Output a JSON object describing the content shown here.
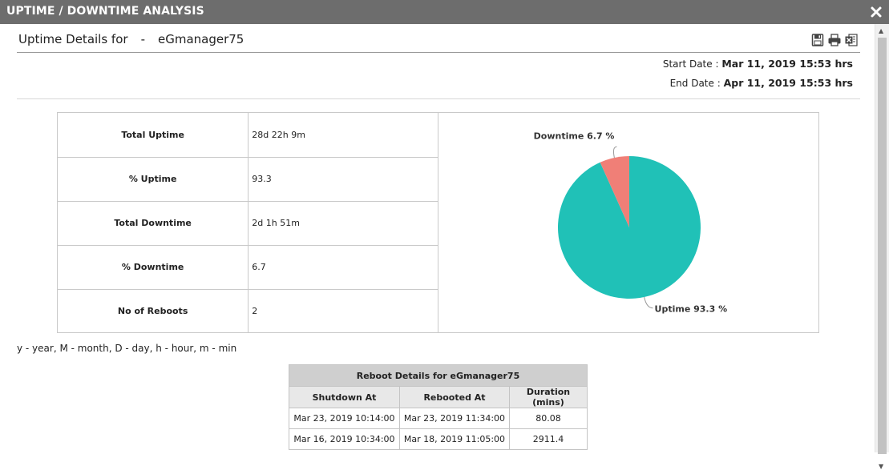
{
  "window": {
    "title": "UPTIME / DOWNTIME ANALYSIS",
    "close_icon": "close-icon"
  },
  "header": {
    "label": "Uptime Details for",
    "separator": "-",
    "server": "eGmanager75",
    "icons": [
      "save-icon",
      "print-icon",
      "excel-export-icon"
    ]
  },
  "dates": {
    "start_label": "Start Date :",
    "start_value": "Mar 11, 2019 15:53 hrs",
    "end_label": "End Date :",
    "end_value": "Apr 11, 2019 15:53 hrs"
  },
  "summary": [
    {
      "label": "Total Uptime",
      "value": "28d 22h 9m"
    },
    {
      "label": "% Uptime",
      "value": "93.3"
    },
    {
      "label": "Total Downtime",
      "value": "2d 1h 51m"
    },
    {
      "label": "% Downtime",
      "value": "6.7"
    },
    {
      "label": "No of Reboots",
      "value": "2"
    }
  ],
  "chart_data": {
    "type": "pie",
    "slices": [
      {
        "label": "Uptime 93.3 %",
        "name": "Uptime",
        "value": 93.3,
        "color": "#20c1b7"
      },
      {
        "label": "Downtime 6.7 %",
        "name": "Downtime",
        "value": 6.7,
        "color": "#f07f77"
      }
    ]
  },
  "unit_legend": "y - year, M - month, D - day, h - hour, m - min",
  "reboots": {
    "title": "Reboot Details for eGmanager75",
    "columns": [
      "Shutdown At",
      "Rebooted At",
      "Duration (mins)"
    ],
    "rows": [
      [
        "Mar 23, 2019 10:14:00",
        "Mar 23, 2019 11:34:00",
        "80.08"
      ],
      [
        "Mar 16, 2019 10:34:00",
        "Mar 18, 2019 11:05:00",
        "2911.4"
      ]
    ]
  }
}
